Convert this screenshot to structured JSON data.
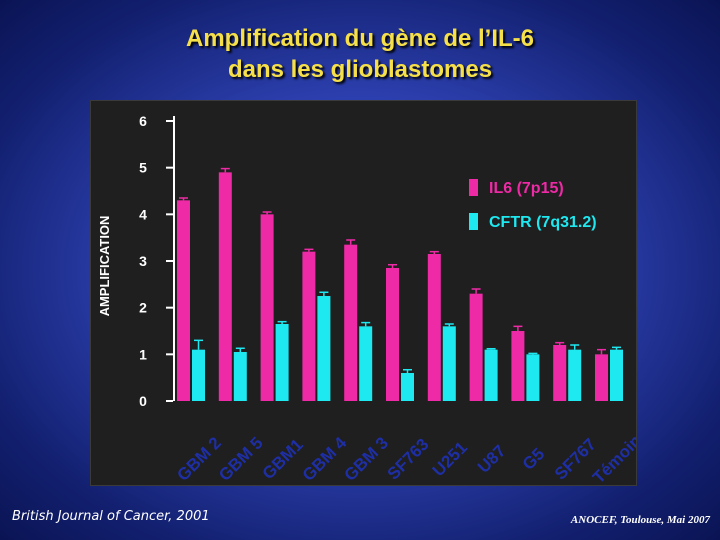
{
  "title_line1": "Amplification du gène de l’IL-6",
  "title_line2": "dans les glioblastomes",
  "footer_left": "British Journal of Cancer, 2001",
  "footer_right": "ANOCEF, Toulouse, Mai 2007",
  "colors": {
    "series1": "#ee2aa6",
    "series2": "#1ee8f0",
    "axis": "#ffffff",
    "title": "#f6e04a",
    "panel": "#1f1f1f"
  },
  "chart_data": {
    "type": "bar",
    "title": "Amplification du gène de l’IL-6 dans les glioblastomes",
    "xlabel": "",
    "ylabel": "AMPLIFICATION",
    "ylim": [
      0,
      6
    ],
    "yticks": [
      "0",
      "1",
      "2",
      "3",
      "4",
      "5",
      "6"
    ],
    "categories": [
      "GBM 2",
      "GBM 5",
      "GBM1",
      "GBM 4",
      "GBM 3",
      "SF763",
      "U251",
      "U87",
      "G5",
      "SF767",
      "Témoin"
    ],
    "series": [
      {
        "name": "IL6 (7p15)",
        "values": [
          4.3,
          4.9,
          4.0,
          3.2,
          3.35,
          2.85,
          3.15,
          2.3,
          1.5,
          1.2,
          1.0
        ]
      },
      {
        "name": "CFTR (7q31.2)",
        "values": [
          1.1,
          1.05,
          1.65,
          2.25,
          1.6,
          0.6,
          1.6,
          1.1,
          1.0,
          1.1,
          1.1
        ]
      }
    ],
    "error_bars": {
      "IL6 (7p15)": [
        0.05,
        0.08,
        0.05,
        0.05,
        0.1,
        0.07,
        0.05,
        0.1,
        0.1,
        0.05,
        0.1
      ],
      "CFTR (7q31.2)": [
        0.2,
        0.08,
        0.05,
        0.08,
        0.08,
        0.07,
        0.05,
        0.02,
        0.02,
        0.1,
        0.05
      ]
    },
    "legend_position": "top-right"
  }
}
